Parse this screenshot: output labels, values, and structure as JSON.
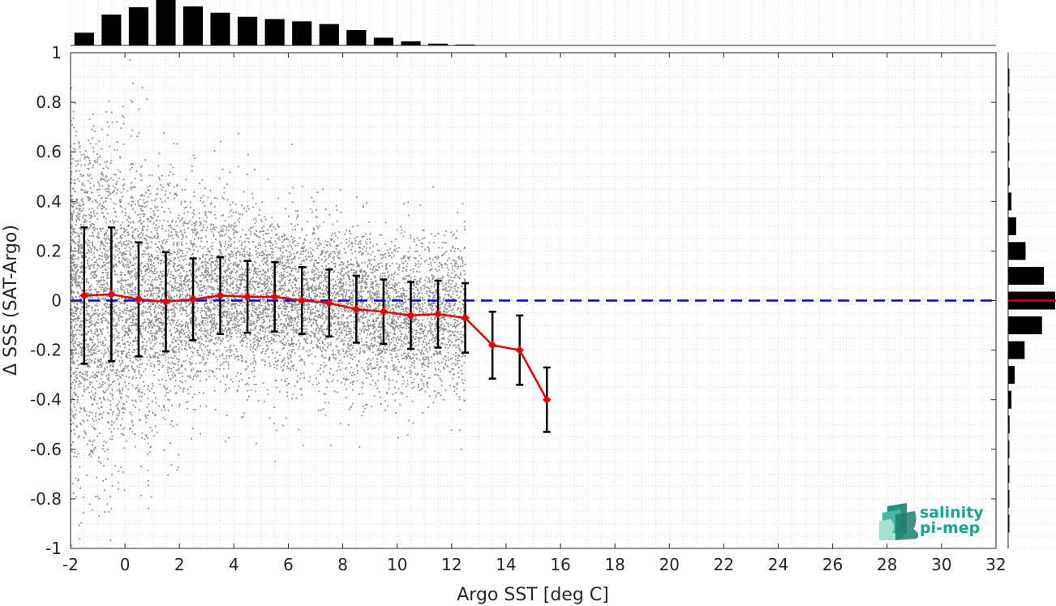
{
  "chart_data": {
    "type": "scatter",
    "xlabel": "Argo SST [deg C]",
    "ylabel": "Δ SSS (SAT-Argo)",
    "xlim": [
      -2,
      32
    ],
    "ylim": [
      -1,
      1
    ],
    "x_ticks": [
      "-2",
      "0",
      "2",
      "4",
      "6",
      "8",
      "10",
      "12",
      "14",
      "16",
      "18",
      "20",
      "22",
      "24",
      "26",
      "28",
      "30",
      "32"
    ],
    "y_ticks": [
      "-1",
      "-0.8",
      "-0.6",
      "-0.4",
      "-0.2",
      "0",
      "0.2",
      "0.4",
      "0.6",
      "0.8",
      "1"
    ],
    "grid": "dotted",
    "scatter_points": {
      "x_range": [
        -2,
        12.5
      ],
      "y_range": [
        -1,
        1
      ],
      "color": "#8c8c8c"
    },
    "binned_mean": {
      "x": [
        -1.5,
        -0.5,
        0.5,
        1.5,
        2.5,
        3.5,
        4.5,
        5.5,
        6.5,
        7.5,
        8.5,
        9.5,
        10.5,
        11.5,
        12.5,
        13.5,
        14.5,
        15.5
      ],
      "mean": [
        0.02,
        0.025,
        0.005,
        -0.005,
        0.005,
        0.02,
        0.015,
        0.015,
        0.0,
        -0.01,
        -0.035,
        -0.045,
        -0.06,
        -0.055,
        -0.07,
        -0.18,
        -0.2,
        -0.4
      ],
      "std": [
        0.275,
        0.27,
        0.23,
        0.2,
        0.165,
        0.155,
        0.145,
        0.14,
        0.135,
        0.135,
        0.135,
        0.13,
        0.135,
        0.135,
        0.14,
        0.135,
        0.14,
        0.13
      ],
      "color": "#e00000",
      "errorbar_color": "#000000"
    },
    "reference_line": {
      "y": 0,
      "color": "#0000dd",
      "style": "dashed"
    },
    "top_histogram": {
      "x": [
        -1.5,
        -0.5,
        0.5,
        1.5,
        2.5,
        3.5,
        4.5,
        5.5,
        6.5,
        7.5,
        8.5,
        9.5,
        10.5,
        11.5,
        12.5
      ],
      "counts": [
        0.28,
        0.68,
        0.84,
        1.0,
        0.86,
        0.72,
        0.63,
        0.58,
        0.53,
        0.47,
        0.34,
        0.17,
        0.09,
        0.04,
        0.02
      ],
      "color": "#000000"
    },
    "right_histogram": {
      "y": [
        0.9,
        0.8,
        0.7,
        0.6,
        0.5,
        0.4,
        0.3,
        0.2,
        0.1,
        0.0,
        -0.1,
        -0.2,
        -0.3,
        -0.4,
        -0.5,
        -0.6,
        -0.7,
        -0.8,
        -0.9
      ],
      "counts": [
        0.02,
        0.02,
        0.02,
        0.02,
        0.03,
        0.07,
        0.17,
        0.37,
        0.76,
        1.0,
        0.72,
        0.35,
        0.14,
        0.07,
        0.03,
        0.02,
        0.02,
        0.02,
        0.02
      ],
      "color": "#000000",
      "marker_y": 0,
      "marker_color": "#e00000"
    }
  },
  "logo": {
    "line1": "salinity",
    "line2": "pi-mep",
    "color": "#1aa493"
  }
}
